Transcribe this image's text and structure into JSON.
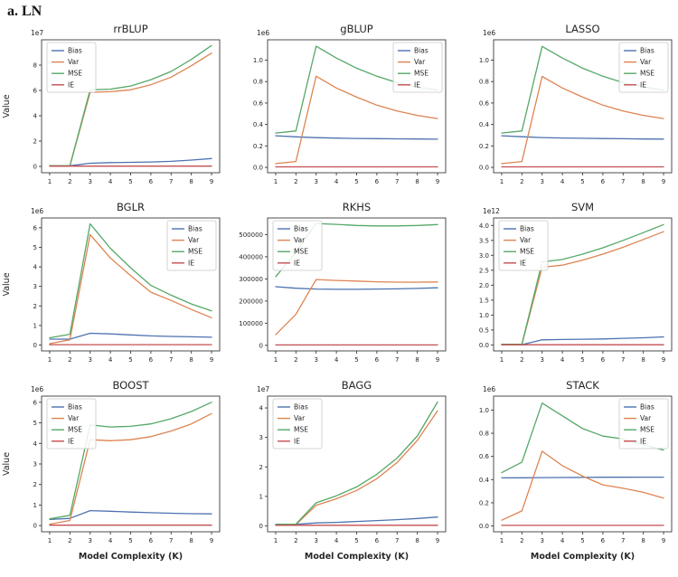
{
  "figure_label": "a. LN",
  "layout": {
    "background": "#ffffff",
    "grid": "off",
    "axis_color": "#3a3a3a",
    "text_color": "#262626",
    "series_colors": {
      "Bias": "#4C72B0",
      "Var": "#DD8452",
      "MSE": "#55A868",
      "IE": "#C44E52"
    },
    "legend_labels": [
      "Bias",
      "Var",
      "MSE",
      "IE"
    ],
    "x_axis_label": "Model Complexity (K)",
    "y_axis_label": "Value"
  },
  "chart_data": [
    {
      "type": "line",
      "title": "rrBLUP",
      "offset_label": "1e7",
      "ylabel": "Value",
      "xlabel": "",
      "x": [
        1,
        2,
        3,
        4,
        5,
        6,
        7,
        8,
        9
      ],
      "xtick_labels": [
        "1",
        "2",
        "3",
        "4",
        "5",
        "6",
        "7",
        "8",
        "9"
      ],
      "ylim": [
        -0.5,
        10.0
      ],
      "yticks": [
        0,
        2,
        4,
        6,
        8
      ],
      "ytick_labels": [
        "0",
        "2",
        "4",
        "6",
        "8"
      ],
      "legend_pos": "left",
      "series": [
        {
          "name": "Bias",
          "values": [
            0.05,
            0.05,
            0.25,
            0.3,
            0.32,
            0.35,
            0.4,
            0.5,
            0.62
          ]
        },
        {
          "name": "Var",
          "values": [
            0.03,
            0.03,
            5.85,
            5.9,
            6.05,
            6.45,
            7.05,
            7.95,
            8.95
          ]
        },
        {
          "name": "MSE",
          "values": [
            0.05,
            0.05,
            6.05,
            6.1,
            6.35,
            6.85,
            7.5,
            8.45,
            9.55
          ]
        },
        {
          "name": "IE",
          "values": [
            0.02,
            0.02,
            0.02,
            0.02,
            0.02,
            0.02,
            0.02,
            0.02,
            0.02
          ]
        }
      ]
    },
    {
      "type": "line",
      "title": "gBLUP",
      "offset_label": "1e6",
      "ylabel": "",
      "xlabel": "",
      "x": [
        1,
        2,
        3,
        4,
        5,
        6,
        7,
        8,
        9
      ],
      "xtick_labels": [
        "1",
        "2",
        "3",
        "4",
        "5",
        "6",
        "7",
        "8",
        "9"
      ],
      "ylim": [
        -0.05,
        1.19
      ],
      "yticks": [
        0.0,
        0.2,
        0.4,
        0.6,
        0.8,
        1.0
      ],
      "ytick_labels": [
        "0.0",
        "0.2",
        "0.4",
        "0.6",
        "0.8",
        "1.0"
      ],
      "legend_pos": "right",
      "series": [
        {
          "name": "Bias",
          "values": [
            0.295,
            0.285,
            0.277,
            0.273,
            0.27,
            0.268,
            0.266,
            0.265,
            0.263
          ]
        },
        {
          "name": "Var",
          "values": [
            0.035,
            0.055,
            0.85,
            0.74,
            0.655,
            0.58,
            0.525,
            0.485,
            0.455
          ]
        },
        {
          "name": "MSE",
          "values": [
            0.32,
            0.34,
            1.13,
            1.02,
            0.925,
            0.85,
            0.79,
            0.75,
            0.72
          ]
        },
        {
          "name": "IE",
          "values": [
            0.005,
            0.005,
            0.005,
            0.005,
            0.005,
            0.005,
            0.005,
            0.005,
            0.005
          ]
        }
      ]
    },
    {
      "type": "line",
      "title": "LASSO",
      "offset_label": "1e6",
      "ylabel": "",
      "xlabel": "",
      "x": [
        1,
        2,
        3,
        4,
        5,
        6,
        7,
        8,
        9
      ],
      "xtick_labels": [
        "1",
        "2",
        "3",
        "4",
        "5",
        "6",
        "7",
        "8",
        "9"
      ],
      "ylim": [
        -0.05,
        1.19
      ],
      "yticks": [
        0.0,
        0.2,
        0.4,
        0.6,
        0.8,
        1.0
      ],
      "ytick_labels": [
        "0.0",
        "0.2",
        "0.4",
        "0.6",
        "0.8",
        "1.0"
      ],
      "legend_pos": "right",
      "series": [
        {
          "name": "Bias",
          "values": [
            0.295,
            0.286,
            0.278,
            0.274,
            0.271,
            0.269,
            0.267,
            0.265,
            0.264
          ]
        },
        {
          "name": "Var",
          "values": [
            0.035,
            0.055,
            0.848,
            0.74,
            0.655,
            0.58,
            0.525,
            0.485,
            0.455
          ]
        },
        {
          "name": "MSE",
          "values": [
            0.32,
            0.34,
            1.128,
            1.02,
            0.925,
            0.85,
            0.79,
            0.75,
            0.72
          ]
        },
        {
          "name": "IE",
          "values": [
            0.005,
            0.005,
            0.005,
            0.005,
            0.005,
            0.005,
            0.005,
            0.005,
            0.005
          ]
        }
      ]
    },
    {
      "type": "line",
      "title": "BGLR",
      "offset_label": "1e6",
      "ylabel": "Value",
      "xlabel": "",
      "x": [
        1,
        2,
        3,
        4,
        5,
        6,
        7,
        8,
        9
      ],
      "xtick_labels": [
        "1",
        "2",
        "3",
        "4",
        "5",
        "6",
        "7",
        "8",
        "9"
      ],
      "ylim": [
        -0.3,
        6.5
      ],
      "yticks": [
        0,
        1,
        2,
        3,
        4,
        5,
        6
      ],
      "ytick_labels": [
        "0",
        "1",
        "2",
        "3",
        "4",
        "5",
        "6"
      ],
      "legend_pos": "right",
      "series": [
        {
          "name": "Bias",
          "values": [
            0.3,
            0.3,
            0.6,
            0.57,
            0.52,
            0.47,
            0.44,
            0.42,
            0.4
          ]
        },
        {
          "name": "Var",
          "values": [
            0.07,
            0.27,
            5.65,
            4.45,
            3.55,
            2.7,
            2.28,
            1.82,
            1.4
          ]
        },
        {
          "name": "MSE",
          "values": [
            0.37,
            0.55,
            6.2,
            4.95,
            3.95,
            3.05,
            2.55,
            2.1,
            1.75
          ]
        },
        {
          "name": "IE",
          "values": [
            0.02,
            0.02,
            0.02,
            0.02,
            0.02,
            0.02,
            0.02,
            0.02,
            0.02
          ]
        }
      ]
    },
    {
      "type": "line",
      "title": "RKHS",
      "offset_label": "",
      "ylabel": "",
      "xlabel": "",
      "x": [
        1,
        2,
        3,
        4,
        5,
        6,
        7,
        8,
        9
      ],
      "xtick_labels": [
        "1",
        "2",
        "3",
        "4",
        "5",
        "6",
        "7",
        "8",
        "9"
      ],
      "ylim": [
        -25000,
        575000
      ],
      "yticks": [
        0,
        100000,
        200000,
        300000,
        400000,
        500000
      ],
      "ytick_labels": [
        "0",
        "100000",
        "200000",
        "300000",
        "400000",
        "500000"
      ],
      "legend_pos": "left",
      "series": [
        {
          "name": "Bias",
          "values": [
            265000,
            258000,
            254000,
            253000,
            253000,
            254000,
            255000,
            257000,
            260000
          ]
        },
        {
          "name": "Var",
          "values": [
            48000,
            140000,
            297000,
            293000,
            290000,
            287000,
            285000,
            285000,
            286000
          ]
        },
        {
          "name": "MSE",
          "values": [
            310000,
            420000,
            550000,
            546000,
            541000,
            539000,
            539000,
            541000,
            545000
          ]
        },
        {
          "name": "IE",
          "values": [
            2000,
            2000,
            2000,
            2000,
            2000,
            2000,
            2000,
            2000,
            2000
          ]
        }
      ]
    },
    {
      "type": "line",
      "title": "SVM",
      "offset_label": "1e12",
      "ylabel": "",
      "xlabel": "",
      "x": [
        1,
        2,
        3,
        4,
        5,
        6,
        7,
        8,
        9
      ],
      "xtick_labels": [
        "1",
        "2",
        "3",
        "4",
        "5",
        "6",
        "7",
        "8",
        "9"
      ],
      "ylim": [
        -0.2,
        4.25
      ],
      "yticks": [
        0.0,
        0.5,
        1.0,
        1.5,
        2.0,
        2.5,
        3.0,
        3.5,
        4.0
      ],
      "ytick_labels": [
        "0.0",
        "0.5",
        "1.0",
        "1.5",
        "2.0",
        "2.5",
        "3.0",
        "3.5",
        "4.0"
      ],
      "legend_pos": "left",
      "series": [
        {
          "name": "Bias",
          "values": [
            0.01,
            0.01,
            0.17,
            0.18,
            0.19,
            0.2,
            0.22,
            0.24,
            0.27
          ]
        },
        {
          "name": "Var",
          "values": [
            0.01,
            0.01,
            2.6,
            2.67,
            2.84,
            3.04,
            3.27,
            3.53,
            3.79
          ]
        },
        {
          "name": "MSE",
          "values": [
            0.02,
            0.02,
            2.78,
            2.86,
            3.04,
            3.25,
            3.5,
            3.76,
            4.03
          ]
        },
        {
          "name": "IE",
          "values": [
            0.005,
            0.005,
            0.005,
            0.005,
            0.005,
            0.005,
            0.005,
            0.005,
            0.005
          ]
        }
      ]
    },
    {
      "type": "line",
      "title": "BOOST",
      "offset_label": "1e6",
      "ylabel": "Value",
      "xlabel": "Model Complexity (K)",
      "x": [
        1,
        2,
        3,
        4,
        5,
        6,
        7,
        8,
        9
      ],
      "xtick_labels": [
        "1",
        "2",
        "3",
        "4",
        "5",
        "6",
        "7",
        "8",
        "9"
      ],
      "ylim": [
        -0.3,
        6.3
      ],
      "yticks": [
        0,
        1,
        2,
        3,
        4,
        5,
        6
      ],
      "ytick_labels": [
        "0",
        "1",
        "2",
        "3",
        "4",
        "5",
        "6"
      ],
      "legend_pos": "left",
      "series": [
        {
          "name": "Bias",
          "values": [
            0.3,
            0.35,
            0.73,
            0.7,
            0.66,
            0.63,
            0.6,
            0.58,
            0.57
          ]
        },
        {
          "name": "Var",
          "values": [
            0.07,
            0.25,
            4.18,
            4.13,
            4.18,
            4.33,
            4.6,
            4.95,
            5.45
          ]
        },
        {
          "name": "MSE",
          "values": [
            0.33,
            0.5,
            4.9,
            4.8,
            4.83,
            4.95,
            5.2,
            5.55,
            6.0
          ]
        },
        {
          "name": "IE",
          "values": [
            0.02,
            0.02,
            0.02,
            0.02,
            0.02,
            0.02,
            0.02,
            0.02,
            0.02
          ]
        }
      ]
    },
    {
      "type": "line",
      "title": "BAGG",
      "offset_label": "1e7",
      "ylabel": "",
      "xlabel": "Model Complexity (K)",
      "x": [
        1,
        2,
        3,
        4,
        5,
        6,
        7,
        8,
        9
      ],
      "xtick_labels": [
        "1",
        "2",
        "3",
        "4",
        "5",
        "6",
        "7",
        "8",
        "9"
      ],
      "ylim": [
        -0.2,
        4.4
      ],
      "yticks": [
        0,
        1,
        2,
        3,
        4
      ],
      "ytick_labels": [
        "0",
        "1",
        "2",
        "3",
        "4"
      ],
      "legend_pos": "left",
      "series": [
        {
          "name": "Bias",
          "values": [
            0.05,
            0.05,
            0.1,
            0.12,
            0.15,
            0.18,
            0.21,
            0.25,
            0.3
          ]
        },
        {
          "name": "Var",
          "values": [
            0.04,
            0.04,
            0.7,
            0.92,
            1.2,
            1.6,
            2.15,
            2.9,
            3.9
          ]
        },
        {
          "name": "MSE",
          "values": [
            0.05,
            0.06,
            0.78,
            1.02,
            1.32,
            1.75,
            2.3,
            3.05,
            4.2
          ]
        },
        {
          "name": "IE",
          "values": [
            0.02,
            0.02,
            0.02,
            0.02,
            0.02,
            0.02,
            0.02,
            0.02,
            0.02
          ]
        }
      ]
    },
    {
      "type": "line",
      "title": "STACK",
      "offset_label": "1e6",
      "ylabel": "",
      "xlabel": "Model Complexity (K)",
      "x": [
        1,
        2,
        3,
        4,
        5,
        6,
        7,
        8,
        9
      ],
      "xtick_labels": [
        "1",
        "2",
        "3",
        "4",
        "5",
        "6",
        "7",
        "8",
        "9"
      ],
      "ylim": [
        -0.05,
        1.12
      ],
      "yticks": [
        0.0,
        0.2,
        0.4,
        0.6,
        0.8,
        1.0
      ],
      "ytick_labels": [
        "0.0",
        "0.2",
        "0.4",
        "0.6",
        "0.8",
        "1.0"
      ],
      "legend_pos": "right",
      "series": [
        {
          "name": "Bias",
          "values": [
            0.415,
            0.416,
            0.417,
            0.418,
            0.419,
            0.42,
            0.42,
            0.421,
            0.421
          ]
        },
        {
          "name": "Var",
          "values": [
            0.05,
            0.13,
            0.645,
            0.52,
            0.43,
            0.355,
            0.325,
            0.29,
            0.24
          ]
        },
        {
          "name": "MSE",
          "values": [
            0.46,
            0.55,
            1.06,
            0.95,
            0.84,
            0.775,
            0.75,
            0.7,
            0.655
          ]
        },
        {
          "name": "IE",
          "values": [
            0.005,
            0.005,
            0.005,
            0.005,
            0.005,
            0.005,
            0.005,
            0.005,
            0.005
          ]
        }
      ]
    }
  ]
}
